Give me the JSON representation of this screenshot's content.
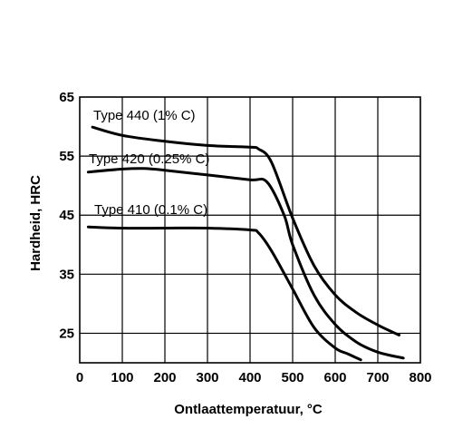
{
  "chart_data": {
    "type": "line",
    "title": "",
    "xlabel": "Ontlaattemperatuur, °C",
    "ylabel": "Hardheid, HRC",
    "xlim": [
      0,
      800
    ],
    "ylim": [
      20,
      65
    ],
    "xticks": [
      0,
      100,
      200,
      300,
      400,
      500,
      600,
      700,
      800
    ],
    "xtick_labels": [
      "0",
      "100",
      "200",
      "300",
      "400",
      "500",
      "600",
      "700",
      "800"
    ],
    "yticks": [
      25,
      35,
      45,
      55,
      65
    ],
    "ytick_labels": [
      "25",
      "35",
      "45",
      "55",
      "65"
    ],
    "grid": true,
    "series": [
      {
        "name": "Type 440 (1% C)",
        "x": [
          30,
          100,
          200,
          300,
          400,
          420,
          450,
          500,
          550,
          600,
          650,
          700,
          750
        ],
        "y": [
          59.9,
          58.5,
          57.5,
          56.8,
          56.5,
          56.2,
          54,
          44.5,
          36.5,
          31.5,
          28.5,
          26.4,
          24.7
        ]
      },
      {
        "name": "Type 420 (0.25% C)",
        "x": [
          20,
          100,
          150,
          200,
          300,
          400,
          440,
          480,
          500,
          550,
          600,
          650,
          700,
          760
        ],
        "y": [
          52.3,
          52.8,
          52.9,
          52.6,
          51.8,
          51,
          50.6,
          45,
          40,
          31.5,
          26.5,
          23.5,
          21.8,
          20.8
        ]
      },
      {
        "name": "Type 410 (0.1% C)",
        "x": [
          20,
          100,
          200,
          300,
          400,
          420,
          450,
          500,
          550,
          600,
          630,
          660
        ],
        "y": [
          43,
          42.8,
          42.8,
          42.8,
          42.5,
          42,
          39,
          32.5,
          26,
          22.5,
          21.5,
          20.5
        ]
      }
    ],
    "annotations": [
      {
        "text": "Type 440 (1% C)",
        "series": "Type 440 (1% C)"
      },
      {
        "text": "Type 420 (0.25% C)",
        "series": "Type 420 (0.25% C)"
      },
      {
        "text": "Type 410 (0.1% C)",
        "series": "Type 410 (0.1% C)"
      }
    ]
  }
}
